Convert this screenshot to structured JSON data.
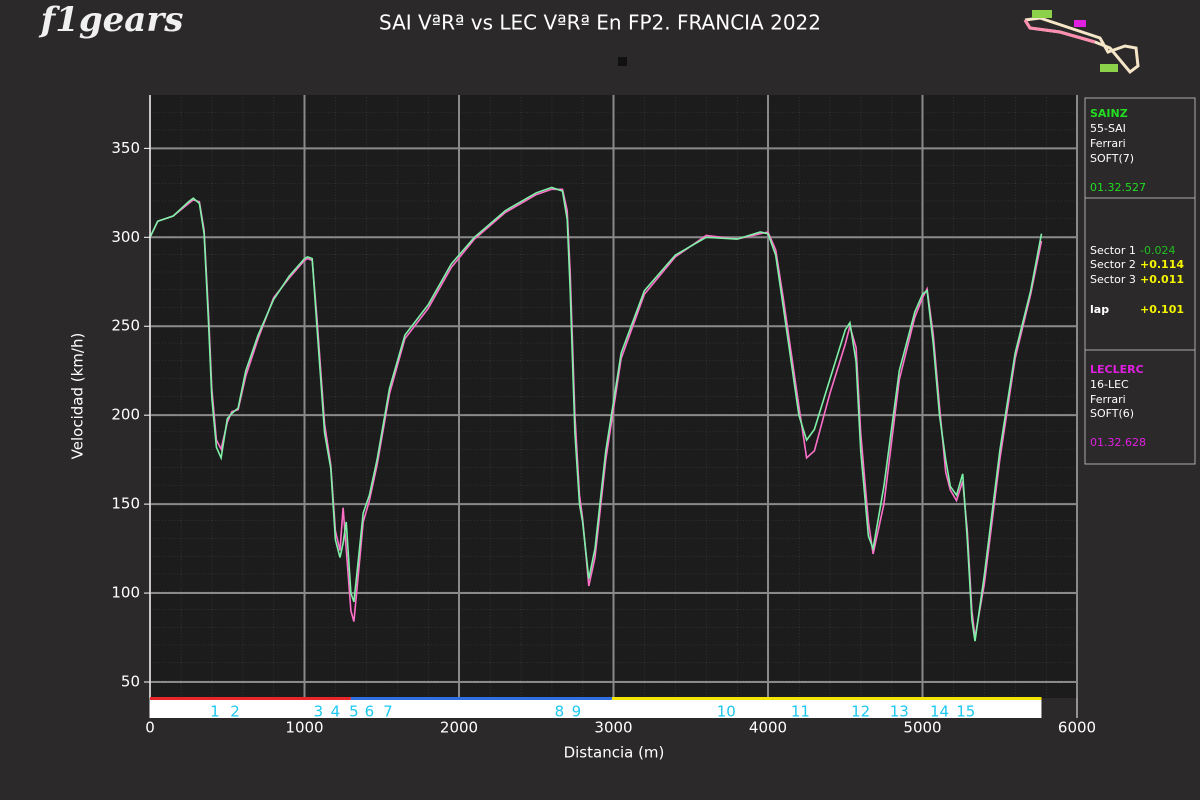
{
  "chart_data": {
    "type": "line",
    "title": "SAI VªRª vs LEC VªRª En FP2. FRANCIA 2022",
    "logo": "f1gears",
    "xlabel": "Distancia (m)",
    "ylabel": "Velocidad (km/h)",
    "xlim": [
      0,
      6000
    ],
    "ylim": [
      41,
      380
    ],
    "xticks": [
      0,
      1000,
      2000,
      3000,
      4000,
      5000,
      6000
    ],
    "yticks": [
      50,
      100,
      150,
      200,
      250,
      300,
      350
    ],
    "grid": true,
    "x": [
      0,
      50,
      150,
      250,
      280,
      320,
      350,
      380,
      400,
      430,
      460,
      500,
      530,
      570,
      620,
      700,
      800,
      900,
      1000,
      1020,
      1050,
      1080,
      1130,
      1170,
      1200,
      1230,
      1250,
      1270,
      1300,
      1320,
      1350,
      1380,
      1420,
      1470,
      1550,
      1650,
      1800,
      1950,
      2100,
      2300,
      2500,
      2600,
      2670,
      2700,
      2720,
      2750,
      2780,
      2800,
      2840,
      2880,
      2950,
      3050,
      3200,
      3400,
      3600,
      3800,
      3950,
      4000,
      4050,
      4100,
      4150,
      4200,
      4250,
      4300,
      4400,
      4500,
      4530,
      4570,
      4600,
      4650,
      4680,
      4750,
      4850,
      4950,
      5000,
      5030,
      5070,
      5110,
      5150,
      5180,
      5220,
      5260,
      5290,
      5320,
      5340,
      5400,
      5500,
      5600,
      5700,
      5770
    ],
    "series": [
      {
        "name": "SAINZ",
        "color": "#7ff0a8",
        "values": [
          300,
          309,
          312,
          320,
          322,
          319,
          302,
          250,
          210,
          182,
          176,
          198,
          201,
          204,
          225,
          245,
          265,
          278,
          288,
          289,
          288,
          250,
          190,
          170,
          130,
          120,
          128,
          140,
          100,
          95,
          120,
          145,
          155,
          175,
          215,
          245,
          262,
          285,
          300,
          315,
          325,
          328,
          326,
          310,
          270,
          190,
          150,
          140,
          108,
          125,
          180,
          235,
          270,
          290,
          300,
          299,
          303,
          302,
          290,
          260,
          230,
          200,
          186,
          192,
          220,
          248,
          252,
          230,
          180,
          132,
          125,
          160,
          225,
          258,
          268,
          270,
          240,
          200,
          175,
          160,
          155,
          167,
          130,
          85,
          73,
          110,
          180,
          235,
          270,
          302
        ]
      },
      {
        "name": "LECLERC",
        "color": "#ff70c8",
        "values": [
          300,
          309,
          312,
          319,
          321,
          320,
          304,
          255,
          215,
          186,
          181,
          196,
          202,
          203,
          222,
          243,
          266,
          277,
          287,
          288,
          287,
          255,
          195,
          172,
          135,
          124,
          148,
          125,
          90,
          84,
          112,
          140,
          152,
          172,
          212,
          243,
          260,
          283,
          299,
          314,
          324,
          327,
          327,
          315,
          280,
          200,
          155,
          142,
          104,
          120,
          175,
          232,
          268,
          289,
          301,
          299,
          302,
          303,
          293,
          265,
          235,
          205,
          176,
          180,
          212,
          240,
          250,
          238,
          190,
          140,
          122,
          150,
          220,
          255,
          266,
          271,
          245,
          205,
          168,
          158,
          152,
          163,
          135,
          90,
          75,
          105,
          175,
          232,
          268,
          298
        ]
      }
    ],
    "sectors": [
      {
        "start": 0,
        "end": 1300,
        "color": "#e8262a"
      },
      {
        "start": 1300,
        "end": 2990,
        "color": "#2f6fe0"
      },
      {
        "start": 2990,
        "end": 5770,
        "color": "#f2e500"
      }
    ],
    "corners": [
      {
        "label": "1",
        "x": 420
      },
      {
        "label": "2",
        "x": 550
      },
      {
        "label": "3",
        "x": 1090
      },
      {
        "label": "4",
        "x": 1200
      },
      {
        "label": "5",
        "x": 1320
      },
      {
        "label": "6",
        "x": 1420
      },
      {
        "label": "7",
        "x": 1540
      },
      {
        "label": "8",
        "x": 2650
      },
      {
        "label": "9",
        "x": 2760
      },
      {
        "label": "10",
        "x": 3730
      },
      {
        "label": "11",
        "x": 4210
      },
      {
        "label": "12",
        "x": 4600
      },
      {
        "label": "13",
        "x": 4850
      },
      {
        "label": "14",
        "x": 5110
      },
      {
        "label": "15",
        "x": 5280
      }
    ],
    "panel": {
      "driver1": {
        "name": "SAINZ",
        "code": "55-SAI",
        "team": "Ferrari",
        "tyre": "SOFT(7)",
        "lap_time": "01.32.527"
      },
      "deltas": [
        {
          "label": "Sector 1",
          "value": "-0.024",
          "color": "#22c022"
        },
        {
          "label": "Sector 2",
          "value": "+0.114",
          "color": "#f5f500"
        },
        {
          "label": "Sector 3",
          "value": "+0.011",
          "color": "#f5f500"
        },
        {
          "label": "lap",
          "value": "+0.101",
          "color": "#f5f500"
        }
      ],
      "driver2": {
        "name": "LECLERC",
        "code": "16-LEC",
        "team": "Ferrari",
        "tyre": "SOFT(6)",
        "lap_time": "01.32.628"
      }
    }
  }
}
